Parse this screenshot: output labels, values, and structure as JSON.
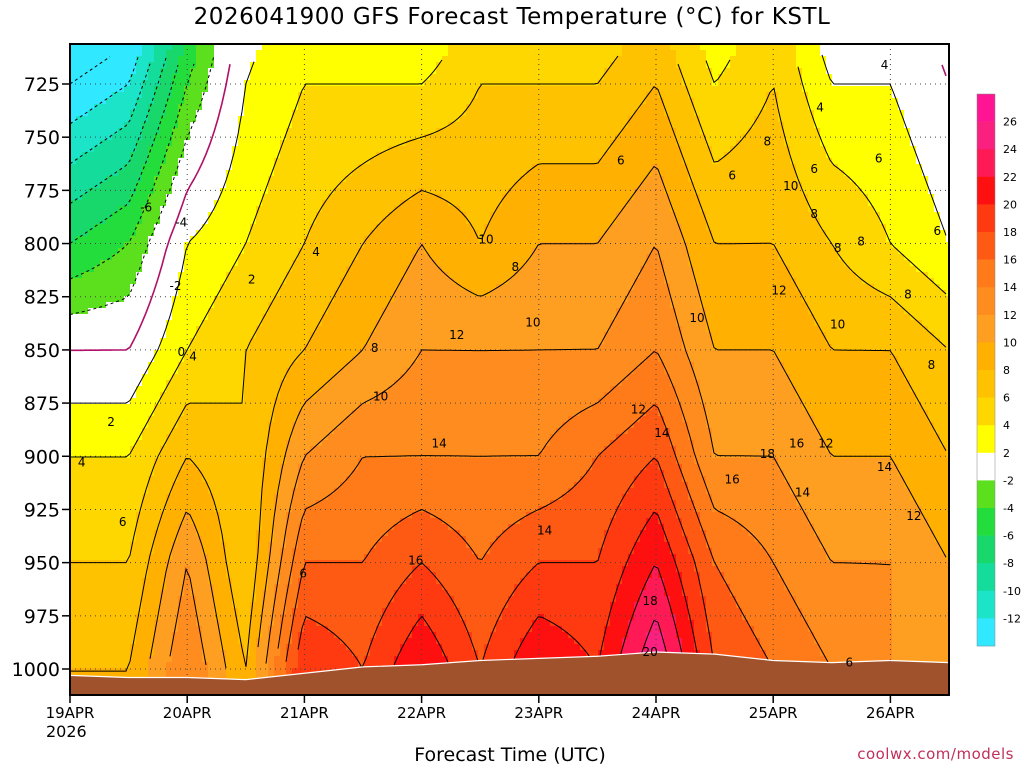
{
  "header": {
    "title": "2026041900 GFS Forecast Temperature (°C) for KSTL",
    "credit": "coolwx.com/models"
  },
  "chart_data": {
    "type": "contour-heatmap",
    "title": "2026041900 GFS Forecast Temperature (°C) for KSTL",
    "xlabel": "Forecast Time (UTC)",
    "ylabel": "Pressure (hPa)",
    "x_ticks": [
      "19APR",
      "20APR",
      "21APR",
      "22APR",
      "23APR",
      "24APR",
      "25APR",
      "26APR"
    ],
    "x_year": "2026",
    "y_ticks": [
      725,
      750,
      775,
      800,
      825,
      850,
      875,
      900,
      925,
      950,
      975,
      1000
    ],
    "xlim_days": [
      0,
      7.5
    ],
    "ylim_hpa": [
      711,
      1012
    ],
    "grid": true,
    "colorbar": {
      "ticks": [
        26,
        24,
        22,
        20,
        18,
        16,
        14,
        12,
        10,
        8,
        6,
        4,
        2,
        -2,
        -4,
        -6,
        -8,
        -10,
        -12
      ],
      "bands": [
        {
          "min": 26,
          "max": 28,
          "color": "#ff1493"
        },
        {
          "min": 24,
          "max": 26,
          "color": "#fa2080"
        },
        {
          "min": 22,
          "max": 24,
          "color": "#ff1a55"
        },
        {
          "min": 20,
          "max": 22,
          "color": "#ff1010"
        },
        {
          "min": 18,
          "max": 20,
          "color": "#ff3a10"
        },
        {
          "min": 16,
          "max": 18,
          "color": "#ff5a14"
        },
        {
          "min": 14,
          "max": 16,
          "color": "#ff7a18"
        },
        {
          "min": 12,
          "max": 14,
          "color": "#ff8c1e"
        },
        {
          "min": 10,
          "max": 12,
          "color": "#ff9f22"
        },
        {
          "min": 8,
          "max": 10,
          "color": "#ffb000"
        },
        {
          "min": 6,
          "max": 8,
          "color": "#ffc200"
        },
        {
          "min": 4,
          "max": 6,
          "color": "#ffd700"
        },
        {
          "min": 2,
          "max": 4,
          "color": "#ffff00"
        },
        {
          "min": -2,
          "max": 2,
          "color": "#ffffff"
        },
        {
          "min": -4,
          "max": -2,
          "color": "#5ce01e"
        },
        {
          "min": -6,
          "max": -4,
          "color": "#22dd3c"
        },
        {
          "min": -8,
          "max": -6,
          "color": "#18d86c"
        },
        {
          "min": -10,
          "max": -8,
          "color": "#14dd9c"
        },
        {
          "min": -12,
          "max": -10,
          "color": "#1ce4c8"
        },
        {
          "min": -14,
          "max": -12,
          "color": "#30e8ff"
        }
      ]
    },
    "ground_color": "#a0522d",
    "ground_hpa": [
      [
        0,
        1003
      ],
      [
        0.5,
        1004
      ],
      [
        1.0,
        1004
      ],
      [
        1.5,
        1005
      ],
      [
        2.0,
        1002
      ],
      [
        2.5,
        999
      ],
      [
        3.0,
        998
      ],
      [
        3.5,
        996
      ],
      [
        4.0,
        995
      ],
      [
        4.5,
        994
      ],
      [
        5.0,
        992
      ],
      [
        5.5,
        993
      ],
      [
        6.0,
        996
      ],
      [
        6.5,
        997
      ],
      [
        7.0,
        996
      ],
      [
        7.5,
        997
      ]
    ],
    "series": [
      {
        "name": "temperature_profile_C",
        "day": 0.0,
        "levels_hpa": [
          725,
          800,
          850,
          900,
          950,
          1000
        ],
        "values": [
          -14,
          -6,
          0,
          4,
          6,
          8
        ]
      },
      {
        "name": "temperature_profile_C",
        "day": 0.5,
        "levels_hpa": [
          725,
          800,
          850,
          900,
          950,
          1000
        ],
        "values": [
          -12,
          -4,
          0,
          4,
          6,
          8
        ]
      },
      {
        "name": "temperature_profile_C",
        "day": 1.0,
        "levels_hpa": [
          725,
          800,
          850,
          900,
          950,
          1000
        ],
        "values": [
          -4,
          2,
          4,
          8,
          12,
          14
        ]
      },
      {
        "name": "temperature_profile_C",
        "day": 1.5,
        "levels_hpa": [
          725,
          800,
          850,
          900,
          950,
          1000
        ],
        "values": [
          2,
          4,
          6,
          6,
          6,
          8
        ]
      },
      {
        "name": "temperature_profile_C",
        "day": 2.0,
        "levels_hpa": [
          725,
          800,
          850,
          900,
          950,
          1000
        ],
        "values": [
          4,
          6,
          8,
          12,
          16,
          20
        ]
      },
      {
        "name": "temperature_profile_C",
        "day": 2.5,
        "levels_hpa": [
          725,
          800,
          850,
          900,
          950,
          1000
        ],
        "values": [
          4,
          8,
          10,
          14,
          16,
          18
        ]
      },
      {
        "name": "temperature_profile_C",
        "day": 3.0,
        "levels_hpa": [
          725,
          800,
          850,
          900,
          950,
          1000
        ],
        "values": [
          4,
          10,
          12,
          14,
          18,
          22
        ]
      },
      {
        "name": "temperature_profile_C",
        "day": 3.5,
        "levels_hpa": [
          725,
          800,
          850,
          900,
          950,
          1000
        ],
        "values": [
          6,
          8,
          12,
          14,
          16,
          18
        ]
      },
      {
        "name": "temperature_profile_C",
        "day": 4.0,
        "levels_hpa": [
          725,
          800,
          850,
          900,
          950,
          1000
        ],
        "values": [
          6,
          10,
          12,
          14,
          18,
          22
        ]
      },
      {
        "name": "temperature_profile_C",
        "day": 4.5,
        "levels_hpa": [
          725,
          800,
          850,
          900,
          950,
          1000
        ],
        "values": [
          6,
          10,
          12,
          16,
          18,
          20
        ]
      },
      {
        "name": "temperature_profile_C",
        "day": 5.0,
        "levels_hpa": [
          725,
          800,
          850,
          900,
          950,
          1000
        ],
        "values": [
          8,
          12,
          14,
          18,
          22,
          26
        ]
      },
      {
        "name": "temperature_profile_C",
        "day": 5.5,
        "levels_hpa": [
          725,
          800,
          850,
          900,
          950,
          1000
        ],
        "values": [
          4,
          8,
          10,
          12,
          16,
          18
        ]
      },
      {
        "name": "temperature_profile_C",
        "day": 6.0,
        "levels_hpa": [
          725,
          800,
          850,
          900,
          950,
          1000
        ],
        "values": [
          6,
          8,
          10,
          12,
          14,
          16
        ]
      },
      {
        "name": "temperature_profile_C",
        "day": 6.5,
        "levels_hpa": [
          725,
          800,
          850,
          900,
          950,
          1000
        ],
        "values": [
          2,
          6,
          8,
          10,
          12,
          14
        ]
      },
      {
        "name": "temperature_profile_C",
        "day": 7.0,
        "levels_hpa": [
          725,
          800,
          850,
          900,
          950,
          1000
        ],
        "values": [
          2,
          4,
          8,
          10,
          12,
          12
        ]
      },
      {
        "name": "temperature_profile_C",
        "day": 7.5,
        "levels_hpa": [
          725,
          800,
          850,
          900,
          950,
          1000
        ],
        "values": [
          0,
          2,
          6,
          8,
          10,
          10
        ]
      }
    ],
    "contour_labels": [
      {
        "day": 0.65,
        "hpa": 783,
        "text": "-6"
      },
      {
        "day": 0.95,
        "hpa": 790,
        "text": "-4"
      },
      {
        "day": 0.9,
        "hpa": 820,
        "text": "-2"
      },
      {
        "day": 0.95,
        "hpa": 851,
        "text": "0"
      },
      {
        "day": 1.55,
        "hpa": 817,
        "text": "2"
      },
      {
        "day": 0.35,
        "hpa": 884,
        "text": "2"
      },
      {
        "day": 0.1,
        "hpa": 903,
        "text": "4"
      },
      {
        "day": 1.05,
        "hpa": 853,
        "text": "4"
      },
      {
        "day": 0.45,
        "hpa": 931,
        "text": "6"
      },
      {
        "day": 2.1,
        "hpa": 804,
        "text": "4"
      },
      {
        "day": 1.99,
        "hpa": 955,
        "text": "6"
      },
      {
        "day": 2.6,
        "hpa": 849,
        "text": "8"
      },
      {
        "day": 2.65,
        "hpa": 872,
        "text": "10"
      },
      {
        "day": 3.55,
        "hpa": 798,
        "text": "10"
      },
      {
        "day": 3.8,
        "hpa": 811,
        "text": "8"
      },
      {
        "day": 3.3,
        "hpa": 843,
        "text": "12"
      },
      {
        "day": 3.95,
        "hpa": 837,
        "text": "10"
      },
      {
        "day": 3.15,
        "hpa": 894,
        "text": "14"
      },
      {
        "day": 2.95,
        "hpa": 949,
        "text": "16"
      },
      {
        "day": 4.05,
        "hpa": 935,
        "text": "14"
      },
      {
        "day": 4.7,
        "hpa": 761,
        "text": "6"
      },
      {
        "day": 4.85,
        "hpa": 878,
        "text": "12"
      },
      {
        "day": 5.05,
        "hpa": 889,
        "text": "14"
      },
      {
        "day": 4.95,
        "hpa": 968,
        "text": "18"
      },
      {
        "day": 4.95,
        "hpa": 992,
        "text": "20"
      },
      {
        "day": 5.35,
        "hpa": 835,
        "text": "10"
      },
      {
        "day": 5.65,
        "hpa": 768,
        "text": "6"
      },
      {
        "day": 5.65,
        "hpa": 911,
        "text": "16"
      },
      {
        "day": 5.95,
        "hpa": 752,
        "text": "8"
      },
      {
        "day": 5.95,
        "hpa": 899,
        "text": "18"
      },
      {
        "day": 6.15,
        "hpa": 773,
        "text": "10"
      },
      {
        "day": 6.05,
        "hpa": 822,
        "text": "12"
      },
      {
        "day": 6.2,
        "hpa": 894,
        "text": "16"
      },
      {
        "day": 6.25,
        "hpa": 917,
        "text": "14"
      },
      {
        "day": 6.4,
        "hpa": 736,
        "text": "4"
      },
      {
        "day": 6.45,
        "hpa": 894,
        "text": "12"
      },
      {
        "day": 6.35,
        "hpa": 765,
        "text": "6"
      },
      {
        "day": 6.35,
        "hpa": 786,
        "text": "8"
      },
      {
        "day": 6.55,
        "hpa": 802,
        "text": "8"
      },
      {
        "day": 6.75,
        "hpa": 799,
        "text": "8"
      },
      {
        "day": 6.55,
        "hpa": 838,
        "text": "10"
      },
      {
        "day": 6.9,
        "hpa": 760,
        "text": "6"
      },
      {
        "day": 6.95,
        "hpa": 716,
        "text": "4"
      },
      {
        "day": 6.95,
        "hpa": 905,
        "text": "14"
      },
      {
        "day": 7.2,
        "hpa": 928,
        "text": "12"
      },
      {
        "day": 6.65,
        "hpa": 997,
        "text": "6"
      },
      {
        "day": 7.35,
        "hpa": 857,
        "text": "8"
      },
      {
        "day": 7.45,
        "hpa": 931,
        "text": "10"
      },
      {
        "day": 7.15,
        "hpa": 824,
        "text": "8"
      },
      {
        "day": 7.75,
        "hpa": 737,
        "text": "2"
      },
      {
        "day": 7.8,
        "hpa": 800,
        "text": "6"
      },
      {
        "day": 7.85,
        "hpa": 830,
        "text": "8"
      },
      {
        "day": 7.85,
        "hpa": 787,
        "text": "4"
      },
      {
        "day": 8.05,
        "hpa": 913,
        "text": "12"
      },
      {
        "day": 8.25,
        "hpa": 934,
        "text": "10"
      },
      {
        "day": 7.4,
        "hpa": 794,
        "text": "6"
      }
    ]
  }
}
